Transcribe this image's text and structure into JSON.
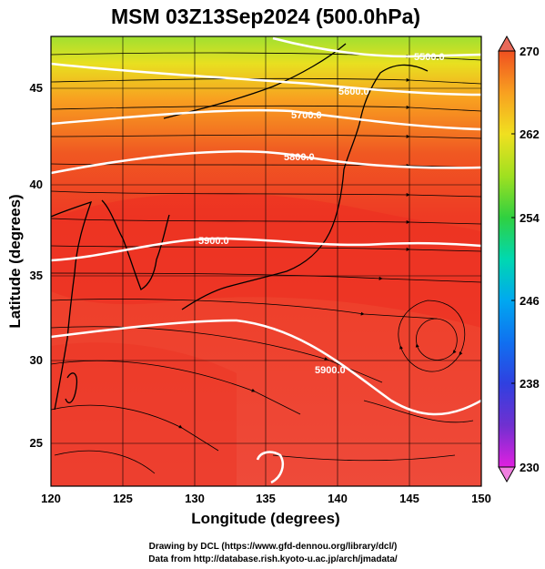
{
  "title": "MSM 03Z13Sep2024 (500.0hPa)",
  "x_axis": {
    "label": "Longitude (degrees)",
    "range": [
      120,
      150
    ],
    "ticks": [
      120,
      125,
      130,
      135,
      140,
      145,
      150
    ]
  },
  "y_axis": {
    "label": "Latitude  (degrees)",
    "range": [
      22.4,
      47.6
    ],
    "ticks": [
      25,
      30,
      35,
      40,
      45
    ]
  },
  "colorbar": {
    "min": 230,
    "max": 270,
    "ticks": [
      270,
      262,
      254,
      246,
      238,
      230
    ],
    "colors": [
      "#e020e0",
      "#7030d0",
      "#3040e0",
      "#00a8f0",
      "#00d8b0",
      "#30d040",
      "#a0e020",
      "#f0e020",
      "#f8a020",
      "#f05020",
      "#e83020"
    ]
  },
  "contours": [
    {
      "label": "5500.0"
    },
    {
      "label": "5600.0"
    },
    {
      "label": "5700.0"
    },
    {
      "label": "5800.0"
    },
    {
      "label": "5900.0"
    },
    {
      "label": "5900.0"
    }
  ],
  "credits": {
    "line1": "Drawing by DCL (https://www.gfd-dennou.org/library/dcl/)",
    "line2": "Data from http://database.rish.kyoto-u.ac.jp/arch/jmadata/"
  }
}
